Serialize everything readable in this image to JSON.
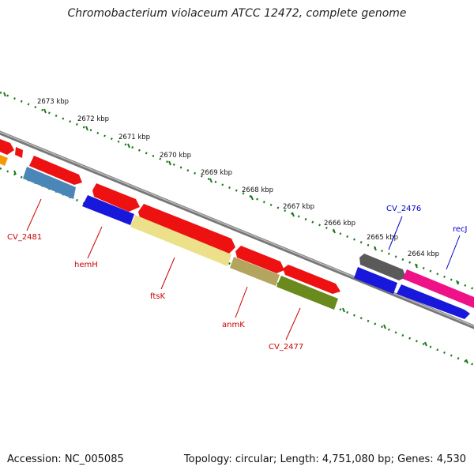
{
  "title": "Chromobacterium violaceum ATCC 12472, complete genome",
  "footer": {
    "accession": "Accession: NC_005085",
    "summary": "Topology: circular; Length: 4,751,080 bp; Genes: 4,530"
  },
  "ruler_labels": [
    "2673 kbp",
    "2672 kbp",
    "2671 kbp",
    "2670 kbp",
    "2669 kbp",
    "2668 kbp",
    "2667 kbp",
    "2666 kbp",
    "2665 kbp",
    "2664 kbp"
  ],
  "gene_labels": [
    {
      "text": "CV_2481",
      "color": "#cc0000"
    },
    {
      "text": "hemH",
      "color": "#cc0000"
    },
    {
      "text": "ftsK",
      "color": "#cc0000"
    },
    {
      "text": "anmK",
      "color": "#cc0000"
    },
    {
      "text": "CV_2477",
      "color": "#cc0000"
    },
    {
      "text": "CV_2476",
      "color": "#0000cc"
    },
    {
      "text": "recJ",
      "color": "#0000cc"
    }
  ],
  "colors": {
    "backbone": "#888888",
    "ruler": "#1a7a1a",
    "red": "#ee1111",
    "steelblue": "#4a86b8",
    "blue": "#1818dd",
    "khaki": "#ede08a",
    "olive_light": "#b3a45e",
    "olive": "#6a8a1e",
    "gray": "#5a5a5a",
    "pink": "#ee1188",
    "orange": "#f59a00"
  }
}
